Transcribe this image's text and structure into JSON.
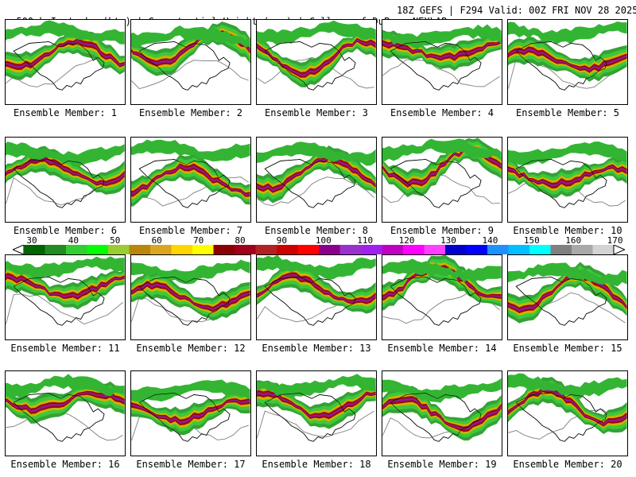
{
  "header": {
    "left": "500mb Isotachs (kts) | Geopotential Height (gpm) | College of DuPage NEXLAB",
    "right": "18Z GEFS | F294 Valid: 00Z FRI NOV 28 2025"
  },
  "members": [
    "Ensemble Member: 1",
    "Ensemble Member: 2",
    "Ensemble Member: 3",
    "Ensemble Member: 4",
    "Ensemble Member: 5",
    "Ensemble Member: 6",
    "Ensemble Member: 7",
    "Ensemble Member: 8",
    "Ensemble Member: 9",
    "Ensemble Member: 10",
    "Ensemble Member: 11",
    "Ensemble Member: 12",
    "Ensemble Member: 13",
    "Ensemble Member: 14",
    "Ensemble Member: 15",
    "Ensemble Member: 16",
    "Ensemble Member: 17",
    "Ensemble Member: 18",
    "Ensemble Member: 19",
    "Ensemble Member: 20"
  ],
  "colorbar": {
    "labels": [
      "30",
      "40",
      "50",
      "60",
      "70",
      "80",
      "90",
      "100",
      "110",
      "120",
      "130",
      "140",
      "150",
      "160",
      "170"
    ],
    "colors": [
      "#006400",
      "#228b22",
      "#32cd32",
      "#00ff00",
      "#9acd32",
      "#b8860b",
      "#daa520",
      "#ffd700",
      "#ffff00",
      "#8b0000",
      "#a0001a",
      "#b22222",
      "#cd0000",
      "#ff0000",
      "#8b008b",
      "#9932cc",
      "#a020f0",
      "#c000c0",
      "#ff00ff",
      "#ff40ff",
      "#0000cd",
      "#0000ff",
      "#1e90ff",
      "#00bfff",
      "#00ffff",
      "#808080",
      "#a9a9a9",
      "#d3d3d3"
    ]
  }
}
